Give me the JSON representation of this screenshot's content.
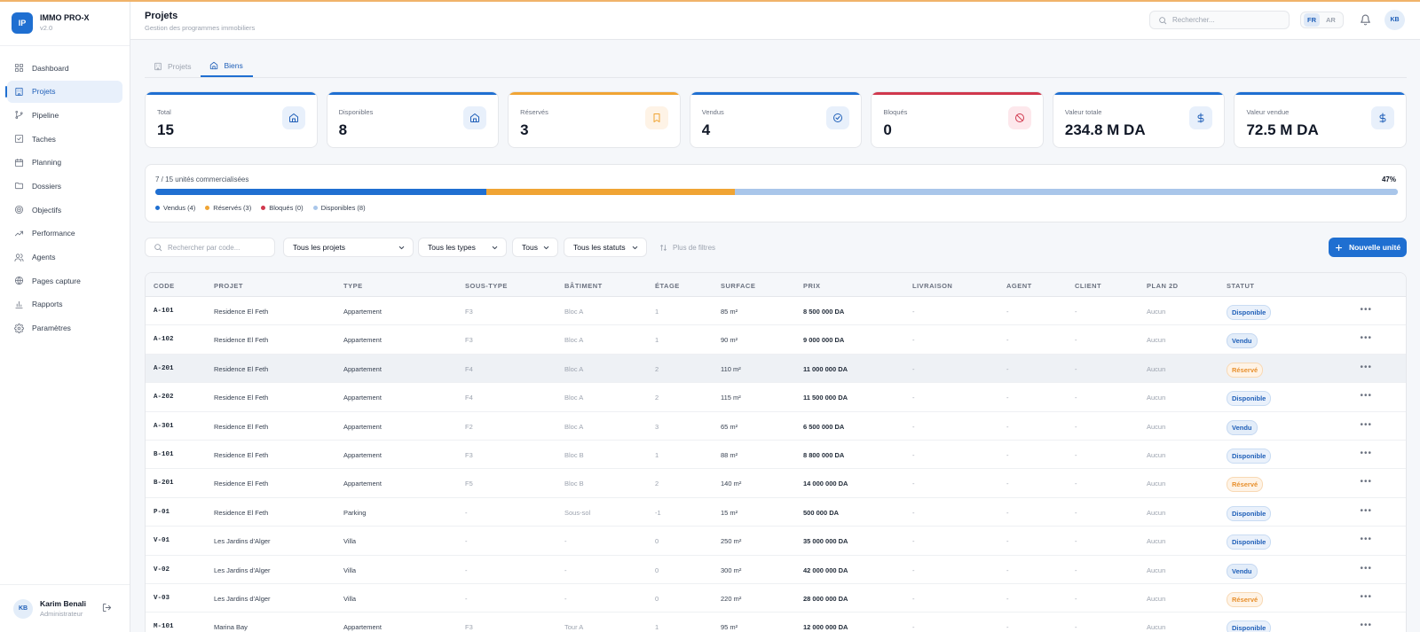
{
  "app": {
    "logo": "IP",
    "name": "IMMO PRO-X",
    "version": "v2.0"
  },
  "sidebar": {
    "items": [
      {
        "label": "Dashboard",
        "icon": "grid-icon",
        "active": false
      },
      {
        "label": "Projets",
        "icon": "building-icon",
        "active": true
      },
      {
        "label": "Pipeline",
        "icon": "git-branch-icon",
        "active": false
      },
      {
        "label": "Taches",
        "icon": "checkbox-icon",
        "active": false
      },
      {
        "label": "Planning",
        "icon": "calendar-icon",
        "active": false
      },
      {
        "label": "Dossiers",
        "icon": "folder-icon",
        "active": false
      },
      {
        "label": "Objectifs",
        "icon": "target-icon",
        "active": false
      },
      {
        "label": "Performance",
        "icon": "trending-up-icon",
        "active": false
      },
      {
        "label": "Agents",
        "icon": "users-icon",
        "active": false
      },
      {
        "label": "Pages capture",
        "icon": "globe-icon",
        "active": false
      },
      {
        "label": "Rapports",
        "icon": "bar-chart-icon",
        "active": false
      },
      {
        "label": "Paramètres",
        "icon": "gear-icon",
        "active": false
      }
    ]
  },
  "user": {
    "initials": "KB",
    "name": "Karim Benali",
    "role": "Administrateur"
  },
  "header": {
    "title": "Projets",
    "subtitle": "Gestion des programmes immobiliers",
    "search_placeholder": "Rechercher...",
    "lang_fr": "FR",
    "lang_ar": "AR",
    "avatar": "KB"
  },
  "tabs": [
    {
      "label": "Projets",
      "active": false
    },
    {
      "label": "Biens",
      "active": true
    }
  ],
  "stats": [
    {
      "label": "Total",
      "value": "15",
      "icon": "home-icon",
      "accent": "#1f6fd1",
      "icon_bg": "#e8f0fb",
      "icon_color": "#1f5fb8"
    },
    {
      "label": "Disponibles",
      "value": "8",
      "icon": "home-icon",
      "accent": "#1f6fd1",
      "icon_bg": "#e8f0fb",
      "icon_color": "#1f5fb8"
    },
    {
      "label": "Réservés",
      "value": "3",
      "icon": "bookmark-icon",
      "accent": "#f0a434",
      "icon_bg": "#fef3e6",
      "icon_color": "#f0a434"
    },
    {
      "label": "Vendus",
      "value": "4",
      "icon": "check-circle-icon",
      "accent": "#1f6fd1",
      "icon_bg": "#e8f0fb",
      "icon_color": "#1f5fb8"
    },
    {
      "label": "Bloqués",
      "value": "0",
      "icon": "ban-icon",
      "accent": "#d0384d",
      "icon_bg": "#fde8ec",
      "icon_color": "#d0384d"
    },
    {
      "label": "Valeur totale",
      "value": "234.8 M DA",
      "icon": "dollar-icon",
      "accent": "#1f6fd1",
      "icon_bg": "#e8f0fb",
      "icon_color": "#1f5fb8"
    },
    {
      "label": "Valeur vendue",
      "value": "72.5 M DA",
      "icon": "dollar-icon",
      "accent": "#1f6fd1",
      "icon_bg": "#e8f0fb",
      "icon_color": "#1f5fb8"
    }
  ],
  "progress": {
    "title": "7 / 15 unités commercialisées",
    "percent": "47%",
    "total": 15,
    "segments": [
      {
        "label": "Vendus (4)",
        "count": 4,
        "color": "#1f6fd1"
      },
      {
        "label": "Réservés (3)",
        "count": 3,
        "color": "#f0a434"
      },
      {
        "label": "Bloqués (0)",
        "count": 0,
        "color": "#d0384d"
      },
      {
        "label": "Disponibles (8)",
        "count": 8,
        "color": "#a9c6ea"
      }
    ]
  },
  "filters": {
    "search_placeholder": "Rechercher par code...",
    "projects": "Tous les projets",
    "types": "Tous les types",
    "all": "Tous",
    "statuses": "Tous les statuts",
    "more": "Plus de filtres",
    "new_button": "Nouvelle unité"
  },
  "table": {
    "columns": [
      "CODE",
      "PROJET",
      "TYPE",
      "SOUS-TYPE",
      "BÂTIMENT",
      "ÉTAGE",
      "SURFACE",
      "PRIX",
      "LIVRAISON",
      "AGENT",
      "CLIENT",
      "PLAN 2D",
      "STATUT"
    ],
    "rows": [
      {
        "code": "A-101",
        "projet": "Residence El Feth",
        "type": "Appartement",
        "sous_type": "F3",
        "batiment": "Bloc A",
        "etage": "1",
        "surface": "85 m²",
        "prix": "8 500 000 DA",
        "livraison": "-",
        "agent": "-",
        "client": "-",
        "plan": "Aucun",
        "statut": "Disponible",
        "kind": "dispo"
      },
      {
        "code": "A-102",
        "projet": "Residence El Feth",
        "type": "Appartement",
        "sous_type": "F3",
        "batiment": "Bloc A",
        "etage": "1",
        "surface": "90 m²",
        "prix": "9 000 000 DA",
        "livraison": "-",
        "agent": "-",
        "client": "-",
        "plan": "Aucun",
        "statut": "Vendu",
        "kind": "vendu"
      },
      {
        "code": "A-201",
        "projet": "Residence El Feth",
        "type": "Appartement",
        "sous_type": "F4",
        "batiment": "Bloc A",
        "etage": "2",
        "surface": "110 m²",
        "prix": "11 000 000 DA",
        "livraison": "-",
        "agent": "-",
        "client": "-",
        "plan": "Aucun",
        "statut": "Réservé",
        "kind": "reserve"
      },
      {
        "code": "A-202",
        "projet": "Residence El Feth",
        "type": "Appartement",
        "sous_type": "F4",
        "batiment": "Bloc A",
        "etage": "2",
        "surface": "115 m²",
        "prix": "11 500 000 DA",
        "livraison": "-",
        "agent": "-",
        "client": "-",
        "plan": "Aucun",
        "statut": "Disponible",
        "kind": "dispo"
      },
      {
        "code": "A-301",
        "projet": "Residence El Feth",
        "type": "Appartement",
        "sous_type": "F2",
        "batiment": "Bloc A",
        "etage": "3",
        "surface": "65 m²",
        "prix": "6 500 000 DA",
        "livraison": "-",
        "agent": "-",
        "client": "-",
        "plan": "Aucun",
        "statut": "Vendu",
        "kind": "vendu"
      },
      {
        "code": "B-101",
        "projet": "Residence El Feth",
        "type": "Appartement",
        "sous_type": "F3",
        "batiment": "Bloc B",
        "etage": "1",
        "surface": "88 m²",
        "prix": "8 800 000 DA",
        "livraison": "-",
        "agent": "-",
        "client": "-",
        "plan": "Aucun",
        "statut": "Disponible",
        "kind": "dispo"
      },
      {
        "code": "B-201",
        "projet": "Residence El Feth",
        "type": "Appartement",
        "sous_type": "F5",
        "batiment": "Bloc B",
        "etage": "2",
        "surface": "140 m²",
        "prix": "14 000 000 DA",
        "livraison": "-",
        "agent": "-",
        "client": "-",
        "plan": "Aucun",
        "statut": "Réservé",
        "kind": "reserve"
      },
      {
        "code": "P-01",
        "projet": "Residence El Feth",
        "type": "Parking",
        "sous_type": "-",
        "batiment": "Sous-sol",
        "etage": "-1",
        "surface": "15 m²",
        "prix": "500 000 DA",
        "livraison": "-",
        "agent": "-",
        "client": "-",
        "plan": "Aucun",
        "statut": "Disponible",
        "kind": "dispo"
      },
      {
        "code": "V-01",
        "projet": "Les Jardins d'Alger",
        "type": "Villa",
        "sous_type": "-",
        "batiment": "-",
        "etage": "0",
        "surface": "250 m²",
        "prix": "35 000 000 DA",
        "livraison": "-",
        "agent": "-",
        "client": "-",
        "plan": "Aucun",
        "statut": "Disponible",
        "kind": "dispo"
      },
      {
        "code": "V-02",
        "projet": "Les Jardins d'Alger",
        "type": "Villa",
        "sous_type": "-",
        "batiment": "-",
        "etage": "0",
        "surface": "300 m²",
        "prix": "42 000 000 DA",
        "livraison": "-",
        "agent": "-",
        "client": "-",
        "plan": "Aucun",
        "statut": "Vendu",
        "kind": "vendu"
      },
      {
        "code": "V-03",
        "projet": "Les Jardins d'Alger",
        "type": "Villa",
        "sous_type": "-",
        "batiment": "-",
        "etage": "0",
        "surface": "220 m²",
        "prix": "28 000 000 DA",
        "livraison": "-",
        "agent": "-",
        "client": "-",
        "plan": "Aucun",
        "statut": "Réservé",
        "kind": "reserve"
      },
      {
        "code": "M-101",
        "projet": "Marina Bay",
        "type": "Appartement",
        "sous_type": "F3",
        "batiment": "Tour A",
        "etage": "1",
        "surface": "95 m²",
        "prix": "12 000 000 DA",
        "livraison": "-",
        "agent": "-",
        "client": "-",
        "plan": "Aucun",
        "statut": "Disponible",
        "kind": "dispo"
      }
    ],
    "highlighted_row": 2
  }
}
